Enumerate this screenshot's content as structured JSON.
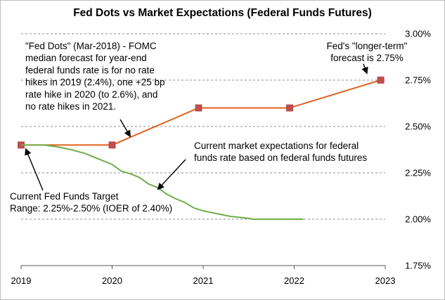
{
  "chart_data": {
    "type": "line",
    "title": "Fed Dots vs Market Expectations (Federal Funds Futures)",
    "xlabel": "",
    "ylabel": "",
    "x_ticks": [
      "2019",
      "2020",
      "2021",
      "2022",
      "2023"
    ],
    "y_ticks": [
      "1.75%",
      "2.00%",
      "2.25%",
      "2.50%",
      "2.75%",
      "3.00%"
    ],
    "xlim": [
      2019,
      2023
    ],
    "ylim": [
      1.75,
      3.0
    ],
    "y_axis_position": "right",
    "grid": "horizontal dashed",
    "series": [
      {
        "color": "#e2611f",
        "marker_color": "#c0504d",
        "marker": "square",
        "points": [
          [
            2019,
            2.4
          ],
          [
            2020,
            2.4
          ],
          [
            2020.95,
            2.6
          ],
          [
            2021.95,
            2.6
          ],
          [
            2022.95,
            2.75
          ]
        ]
      },
      {
        "color": "#70ad47",
        "marker": "none",
        "points": [
          [
            2019.0,
            2.4
          ],
          [
            2019.1,
            2.4
          ],
          [
            2019.25,
            2.4
          ],
          [
            2019.4,
            2.39
          ],
          [
            2019.55,
            2.375
          ],
          [
            2019.7,
            2.355
          ],
          [
            2019.85,
            2.325
          ],
          [
            2020.0,
            2.295
          ],
          [
            2020.1,
            2.26
          ],
          [
            2020.2,
            2.245
          ],
          [
            2020.3,
            2.225
          ],
          [
            2020.4,
            2.19
          ],
          [
            2020.5,
            2.17
          ],
          [
            2020.6,
            2.135
          ],
          [
            2020.7,
            2.11
          ],
          [
            2020.8,
            2.09
          ],
          [
            2020.9,
            2.06
          ],
          [
            2021.0,
            2.045
          ],
          [
            2021.1,
            2.035
          ],
          [
            2021.2,
            2.025
          ],
          [
            2021.3,
            2.015
          ],
          [
            2021.4,
            2.01
          ],
          [
            2021.5,
            2.005
          ],
          [
            2021.55,
            2.0
          ],
          [
            2021.8,
            2.0
          ],
          [
            2022.1,
            2.0
          ]
        ]
      }
    ],
    "annotations": [
      {
        "lines": [
          "\"Fed Dots\" (Mar-2018) - FOMC",
          "median forecast for year-end",
          "federal funds rate is for no rate",
          "hikes in 2019 (2.4%), one +25 bp",
          "rate hike in 2020 (to 2.6%), and",
          "no rate hikes in 2021."
        ],
        "arrow_to": [
          2020.2,
          2.445
        ]
      },
      {
        "lines": [
          "Fed's \"longer-term\"",
          "forecast is 2.75%"
        ],
        "arrow_to": [
          2022.8,
          2.785
        ]
      },
      {
        "lines": [
          "Current market expectations for federal",
          "funds rate based on federal funds futures"
        ],
        "arrow_to": [
          2020.5,
          2.16
        ]
      },
      {
        "lines": [
          "Current Fed Funds Target",
          "Range: 2.25%-2.50% (IOER of 2.40%)"
        ],
        "arrow_to": [
          2019.05,
          2.38
        ]
      }
    ]
  }
}
